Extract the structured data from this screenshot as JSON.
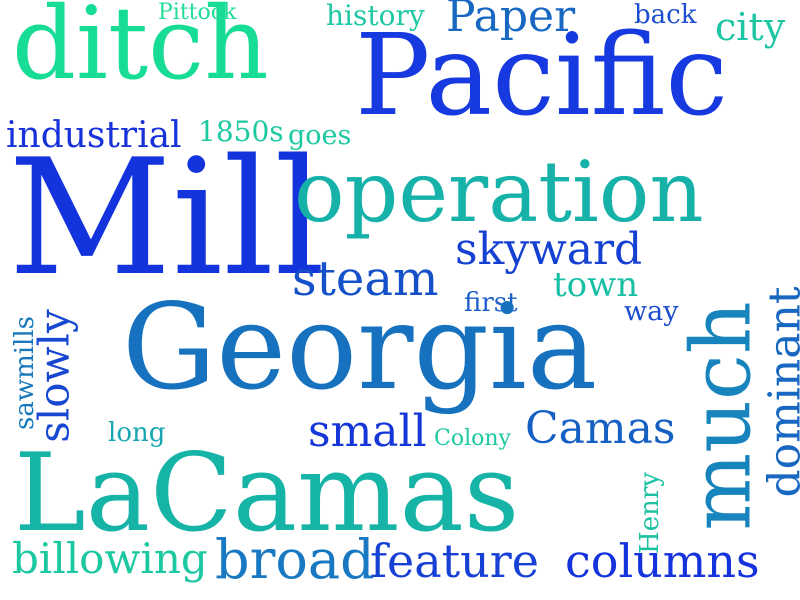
{
  "words": {
    "ditch": {
      "text": "ditch",
      "color": "#17dc95"
    },
    "pacific": {
      "text": "Pacific",
      "color": "#1739e0"
    },
    "pittock": {
      "text": "Pittock",
      "color": "#22dd98"
    },
    "history": {
      "text": "history",
      "color": "#1ec8a4"
    },
    "paper": {
      "text": "Paper",
      "color": "#1868c2"
    },
    "back": {
      "text": "back",
      "color": "#1b4ed0"
    },
    "city": {
      "text": "city",
      "color": "#1cc6a3"
    },
    "industrial": {
      "text": "industrial",
      "color": "#1732d8"
    },
    "y1850s": {
      "text": "1850s",
      "color": "#1cc9a0"
    },
    "goes": {
      "text": "goes",
      "color": "#1cc9a0"
    },
    "mill": {
      "text": "Mill",
      "color": "#1334dc"
    },
    "operation": {
      "text": "operation",
      "color": "#16b2aa"
    },
    "skyward": {
      "text": "skyward",
      "color": "#1541d2"
    },
    "steam": {
      "text": "steam",
      "color": "#1450c8"
    },
    "town": {
      "text": "town",
      "color": "#19bfa5"
    },
    "first": {
      "text": "first",
      "color": "#1b5fc8"
    },
    "way": {
      "text": "way",
      "color": "#1a4bd0"
    },
    "georgia": {
      "text": "Georgia",
      "color": "#1672be"
    },
    "much": {
      "text": "much",
      "color": "#1784bd"
    },
    "dominant": {
      "text": "dominant",
      "color": "#1868c2"
    },
    "slowly": {
      "text": "slowly",
      "color": "#1748d2"
    },
    "sawmills": {
      "text": "sawmills",
      "color": "#1779bc"
    },
    "long": {
      "text": "long",
      "color": "#1aa6b0"
    },
    "small": {
      "text": "small",
      "color": "#1536d8"
    },
    "colony": {
      "text": "Colony",
      "color": "#1cc9a0"
    },
    "camas": {
      "text": "Camas",
      "color": "#1660c4"
    },
    "lacamas": {
      "text": "LaCamas",
      "color": "#16b3a7"
    },
    "henry": {
      "text": "Henry",
      "color": "#1cc1a2"
    },
    "billowing": {
      "text": "billowing",
      "color": "#1cc8a0"
    },
    "broad": {
      "text": "broad",
      "color": "#1878c2"
    },
    "feature": {
      "text": "feature",
      "color": "#1641d4"
    },
    "columns": {
      "text": "columns",
      "color": "#1533dc"
    }
  }
}
